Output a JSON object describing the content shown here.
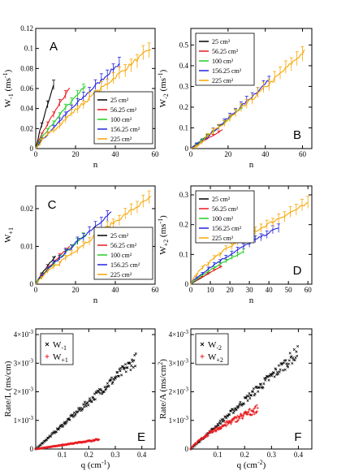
{
  "chart_data": [
    {
      "id": "A",
      "type": "line",
      "panel_label": "A",
      "xlabel": "n",
      "ylabel_main": "W",
      "ylabel_sub": "-1",
      "ylabel_unit": "(ms",
      "ylabel_unit_sup": "-1",
      "ylabel_unit_close": ")",
      "xlim": [
        0,
        60
      ],
      "ylim": [
        0,
        0.12
      ],
      "xticks": [
        0,
        20,
        40,
        60
      ],
      "xtick_labels": [
        "0",
        "20",
        "40",
        "60"
      ],
      "yticks": [
        0,
        0.02,
        0.04,
        0.06,
        0.08,
        0.1,
        0.12
      ],
      "ytick_labels": [
        "0",
        "0.02",
        "0.04",
        "0.06",
        "0.08",
        "0.1",
        "0.12"
      ],
      "legend_position": "lower-right",
      "series": [
        {
          "name": "25 cm²",
          "color": "#000000",
          "n_max": 9,
          "y_max": 0.063,
          "curve": 0.88
        },
        {
          "name": "56.25 cm²",
          "color": "#e8191d",
          "n_max": 17,
          "y_max": 0.06,
          "curve": 0.85
        },
        {
          "name": "100 cm²",
          "color": "#22cc22",
          "n_max": 25,
          "y_max": 0.063,
          "curve": 0.86
        },
        {
          "name": "156.25 cm²",
          "color": "#2222dd",
          "n_max": 42,
          "y_max": 0.085,
          "curve": 0.9
        },
        {
          "name": "225 cm²",
          "color": "#f7a600",
          "n_max": 58,
          "y_max": 0.1,
          "curve": 0.9
        }
      ]
    },
    {
      "id": "B",
      "type": "line",
      "panel_label": "B",
      "xlabel": "n",
      "ylabel_main": "W",
      "ylabel_sub": "-2",
      "ylabel_unit": "(ms",
      "ylabel_unit_sup": "-1",
      "ylabel_unit_close": ")",
      "xlim": [
        0,
        65
      ],
      "ylim": [
        0,
        0.58
      ],
      "xticks": [
        0,
        20,
        40,
        60
      ],
      "xtick_labels": [
        "0",
        "20",
        "40",
        "60"
      ],
      "yticks": [
        0,
        0.1,
        0.2,
        0.3,
        0.4,
        0.5
      ],
      "ytick_labels": [
        "0",
        "0.1",
        "0.2",
        "0.3",
        "0.4",
        "0.5"
      ],
      "legend_position": "top-left",
      "series": [
        {
          "name": "25 cm²",
          "color": "#000000",
          "n_max": 10,
          "y_max": 0.07,
          "curve": 1.0
        },
        {
          "name": "56.25 cm²",
          "color": "#e8191d",
          "n_max": 17,
          "y_max": 0.09,
          "curve": 1.0
        },
        {
          "name": "100 cm²",
          "color": "#22cc22",
          "n_max": 28,
          "y_max": 0.2,
          "curve": 1.05
        },
        {
          "name": "156.25 cm²",
          "color": "#2222dd",
          "n_max": 42,
          "y_max": 0.33,
          "curve": 1.1
        },
        {
          "name": "225 cm²",
          "color": "#f7a600",
          "n_max": 61,
          "y_max": 0.47,
          "curve": 1.1
        }
      ]
    },
    {
      "id": "C",
      "type": "line",
      "panel_label": "C",
      "xlabel": "n",
      "ylabel_main": "W",
      "ylabel_sub": "+1",
      "ylabel_unit": "",
      "ylabel_unit_sup": "",
      "ylabel_unit_close": "",
      "xlim": [
        0,
        60
      ],
      "ylim": [
        0,
        0.026
      ],
      "xticks": [
        0,
        20,
        40,
        60
      ],
      "xtick_labels": [
        "0",
        "20",
        "40",
        "60"
      ],
      "yticks": [
        0,
        0.01,
        0.02
      ],
      "ytick_labels": [
        "0",
        "0.01",
        "0.02"
      ],
      "legend_position": "lower-right",
      "series": [
        {
          "name": "25 cm²",
          "color": "#000000",
          "n_max": 10,
          "y_max": 0.0075,
          "curve": 0.85
        },
        {
          "name": "56.25 cm²",
          "color": "#e8191d",
          "n_max": 17,
          "y_max": 0.01,
          "curve": 0.85
        },
        {
          "name": "100 cm²",
          "color": "#22cc22",
          "n_max": 25,
          "y_max": 0.013,
          "curve": 0.85
        },
        {
          "name": "156.25 cm²",
          "color": "#2222dd",
          "n_max": 38,
          "y_max": 0.019,
          "curve": 0.88
        },
        {
          "name": "225 cm²",
          "color": "#f7a600",
          "n_max": 58,
          "y_max": 0.023,
          "curve": 0.88
        }
      ]
    },
    {
      "id": "D",
      "type": "line",
      "panel_label": "D",
      "xlabel": "n",
      "ylabel_main": "W",
      "ylabel_sub": "+2",
      "ylabel_unit": "(ms",
      "ylabel_unit_sup": "-1",
      "ylabel_unit_close": ")",
      "xlim": [
        0,
        62
      ],
      "ylim": [
        0,
        0.33
      ],
      "xticks": [
        0,
        10,
        20,
        30,
        40,
        50,
        60
      ],
      "xtick_labels": [
        "0",
        "10",
        "20",
        "30",
        "40",
        "50",
        "60"
      ],
      "yticks": [
        0,
        0.1,
        0.2,
        0.3
      ],
      "ytick_labels": [
        "0",
        "0.1",
        "0.2",
        "0.3"
      ],
      "legend_position": "top-left",
      "series": [
        {
          "name": "25 cm²",
          "color": "#000000",
          "n_max": 10,
          "y_max": 0.04,
          "curve": 1.0
        },
        {
          "name": "56.25 cm²",
          "color": "#e8191d",
          "n_max": 16,
          "y_max": 0.06,
          "curve": 0.9
        },
        {
          "name": "100 cm²",
          "color": "#22cc22",
          "n_max": 27,
          "y_max": 0.11,
          "curve": 0.85
        },
        {
          "name": "156.25 cm²",
          "color": "#2222dd",
          "n_max": 45,
          "y_max": 0.19,
          "curve": 0.8
        },
        {
          "name": "225 cm²",
          "color": "#f7a600",
          "n_max": 60,
          "y_max": 0.27,
          "curve": 0.7
        }
      ]
    },
    {
      "id": "E",
      "type": "scatter",
      "panel_label": "E",
      "xlabel": "q (cm",
      "xlabel_sup": "-1",
      "xlabel_close": ")",
      "ylabel_main": "Rate/L (ms/cm)",
      "xlim": [
        0,
        0.45
      ],
      "ylim": [
        0,
        0.0042
      ],
      "xticks": [
        0.1,
        0.2,
        0.3,
        0.4
      ],
      "xtick_labels": [
        "0.1",
        "0.2",
        "0.3",
        "0.4"
      ],
      "yticks": [
        0,
        0.001,
        0.002,
        0.003,
        0.004
      ],
      "ytick_labels": [
        "0",
        "1×10",
        "2×10",
        "3×10",
        "4×10"
      ],
      "ytick_exp": "-3",
      "legend_position": "top-left",
      "series": [
        {
          "name": "W",
          "sub": "-1",
          "color": "#000000",
          "marker": "x",
          "x_max": 0.38,
          "slope": 0.0083
        },
        {
          "name": "W",
          "sub": "+1",
          "color": "#e8191d",
          "marker": "+",
          "x_max": 0.24,
          "slope": 0.0014
        }
      ]
    },
    {
      "id": "F",
      "type": "scatter",
      "panel_label": "F",
      "xlabel": "q (cm",
      "xlabel_sup": "-2",
      "xlabel_close": ")",
      "ylabel_main": "Rate/A (ms/cm",
      "ylabel_sup": "2",
      "ylabel_close": ")",
      "xlim": [
        0,
        0.45
      ],
      "ylim": [
        0,
        0.0042
      ],
      "xticks": [
        0.1,
        0.2,
        0.3,
        0.4
      ],
      "xtick_labels": [
        "0.1",
        "0.2",
        "0.3",
        "0.4"
      ],
      "yticks": [
        0,
        0.001,
        0.002,
        0.003,
        0.004
      ],
      "ytick_labels": [
        "0",
        "1×10",
        "2×10",
        "3×10",
        "4×10"
      ],
      "ytick_exp": "-3",
      "legend_position": "top-left",
      "series": [
        {
          "name": "W",
          "sub": "-2",
          "color": "#000000",
          "marker": "x",
          "x_max": 0.4,
          "slope": 0.0085
        },
        {
          "name": "W",
          "sub": "+2",
          "color": "#e8191d",
          "marker": "+",
          "x_max": 0.25,
          "slope": 0.004
        }
      ]
    }
  ]
}
